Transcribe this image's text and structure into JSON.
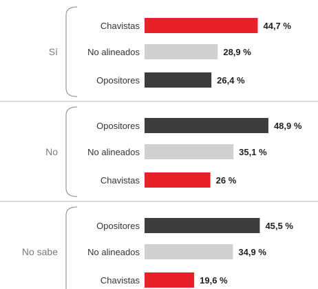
{
  "chart_data": {
    "type": "bar",
    "orientation": "horizontal",
    "grouped": true,
    "title": "",
    "xlabel": "",
    "ylabel": "",
    "xlim": [
      0,
      50
    ],
    "grid": false,
    "legend": "none",
    "groups": [
      {
        "label": "Sí",
        "bars": [
          {
            "category": "Chavistas",
            "value": 44.7,
            "value_label": "44,7 %",
            "color": "#e8202a"
          },
          {
            "category": "No alineados",
            "value": 28.9,
            "value_label": "28,9 %",
            "color": "#d0d0d0"
          },
          {
            "category": "Opositores",
            "value": 26.4,
            "value_label": "26,4 %",
            "color": "#3d3d3d"
          }
        ]
      },
      {
        "label": "No",
        "bars": [
          {
            "category": "Opositores",
            "value": 48.9,
            "value_label": "48,9 %",
            "color": "#3d3d3d"
          },
          {
            "category": "No alineados",
            "value": 35.1,
            "value_label": "35,1 %",
            "color": "#d0d0d0"
          },
          {
            "category": "Chavistas",
            "value": 26,
            "value_label": "26 %",
            "color": "#e8202a"
          }
        ]
      },
      {
        "label": "No sabe",
        "bars": [
          {
            "category": "Opositores",
            "value": 45.5,
            "value_label": "45,5 %",
            "color": "#3d3d3d"
          },
          {
            "category": "No alineados",
            "value": 34.9,
            "value_label": "34,9 %",
            "color": "#d0d0d0"
          },
          {
            "category": "Chavistas",
            "value": 19.6,
            "value_label": "19,6 %",
            "color": "#e8202a"
          }
        ]
      }
    ]
  }
}
